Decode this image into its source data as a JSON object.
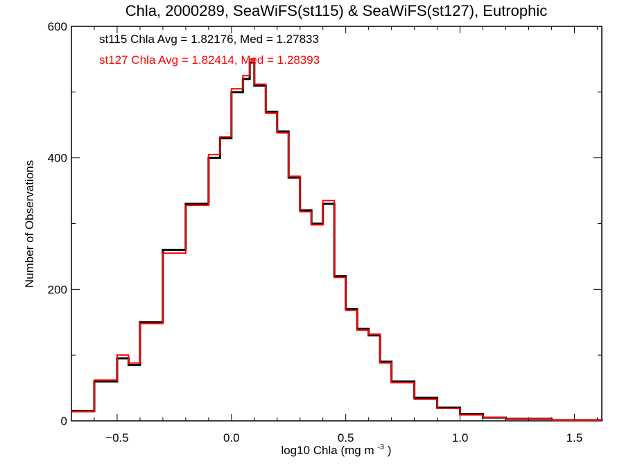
{
  "chart_data": {
    "type": "line",
    "title": "Chla, 2000289, SeaWiFS(st115) & SeaWiFS(st127), Eutrophic",
    "xlabel_main": "log10 Chla (mg m",
    "xlabel_sup": "-3",
    "xlabel_tail": ")",
    "ylabel": "Number of Observations",
    "xlim": [
      -0.7,
      1.62
    ],
    "ylim": [
      0,
      600
    ],
    "x_ticks": [
      -0.5,
      0.0,
      0.5,
      1.0,
      1.5
    ],
    "x_tick_labels": [
      "−0.5",
      "0.0",
      "0.5",
      "1.0",
      "1.5"
    ],
    "y_ticks": [
      0,
      200,
      400,
      600
    ],
    "y_tick_labels": [
      "0",
      "200",
      "400",
      "600"
    ],
    "annotations": [
      {
        "text": "st115 Chla Avg = 1.82176, Med = 1.27833",
        "color": "#000000"
      },
      {
        "text": "st127 Chla Avg = 1.82414, Med = 1.28393",
        "color": "#ff0000"
      }
    ],
    "series": [
      {
        "color": "#000000",
        "style": "histogram-step",
        "x": [
          -0.7,
          -0.6,
          -0.5,
          -0.45,
          -0.4,
          -0.3,
          -0.2,
          -0.1,
          -0.05,
          0.0,
          0.05,
          0.08,
          0.1,
          0.15,
          0.2,
          0.25,
          0.3,
          0.35,
          0.4,
          0.45,
          0.5,
          0.55,
          0.6,
          0.65,
          0.7,
          0.8,
          0.9,
          1.0,
          1.1,
          1.2,
          1.4,
          1.62
        ],
        "y": [
          15,
          60,
          95,
          85,
          150,
          260,
          330,
          400,
          430,
          500,
          520,
          545,
          510,
          470,
          440,
          370,
          320,
          300,
          330,
          220,
          170,
          140,
          130,
          90,
          60,
          35,
          20,
          10,
          5,
          3,
          1,
          0
        ]
      },
      {
        "color": "#ff0000",
        "style": "histogram-step",
        "x": [
          -0.7,
          -0.6,
          -0.5,
          -0.45,
          -0.4,
          -0.3,
          -0.2,
          -0.1,
          -0.05,
          0.0,
          0.05,
          0.08,
          0.1,
          0.15,
          0.2,
          0.25,
          0.3,
          0.35,
          0.4,
          0.45,
          0.5,
          0.55,
          0.6,
          0.65,
          0.7,
          0.8,
          0.9,
          1.0,
          1.1,
          1.2,
          1.4,
          1.62
        ],
        "y": [
          14,
          62,
          100,
          88,
          148,
          255,
          328,
          405,
          432,
          505,
          525,
          550,
          512,
          468,
          438,
          372,
          318,
          298,
          335,
          218,
          168,
          138,
          132,
          88,
          58,
          33,
          19,
          9,
          5,
          3,
          1,
          0
        ]
      }
    ],
    "grid": false,
    "legend": "none"
  }
}
